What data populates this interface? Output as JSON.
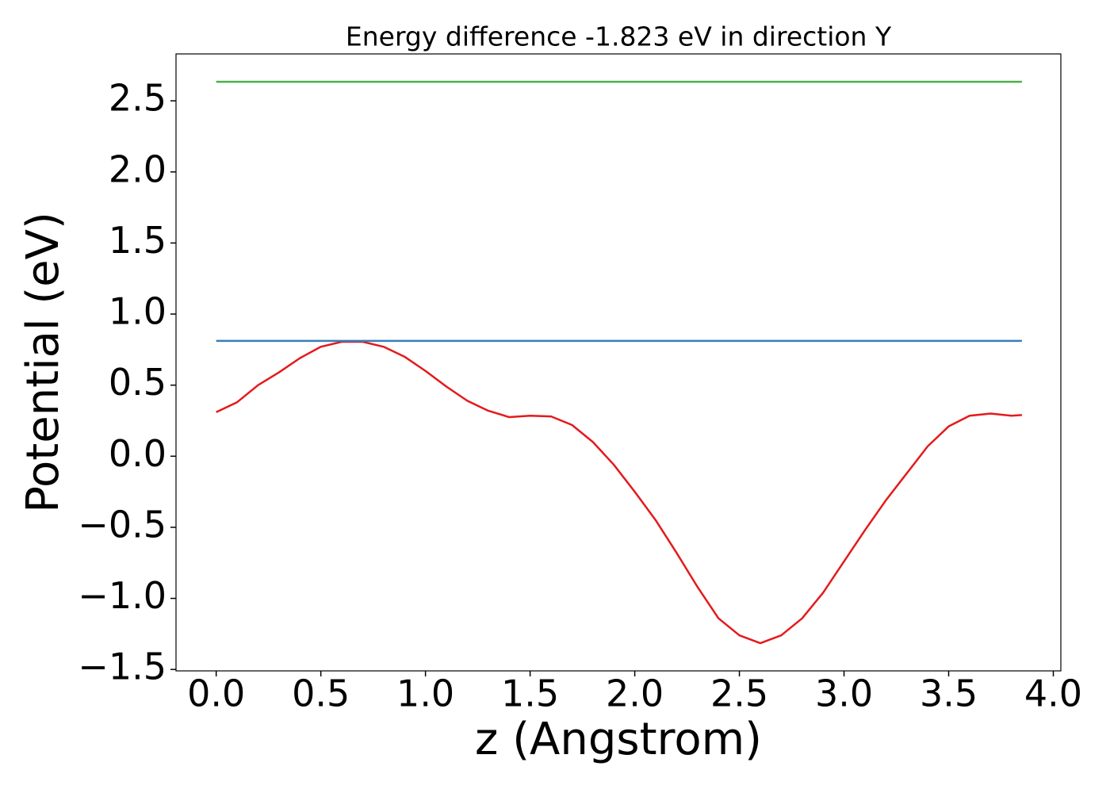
{
  "chart_data": {
    "type": "line",
    "title": "Energy difference -1.823 eV in direction Y",
    "x_label": "z (Angstrom)",
    "y_label": "Potential (eV)",
    "xlim": [
      -0.192,
      4.036
    ],
    "ylim": [
      -1.51,
      2.83
    ],
    "xticks": [
      {
        "value": 0,
        "label": "0.0"
      },
      {
        "value": 0.5,
        "label": "0.5"
      },
      {
        "value": 1,
        "label": "1.0"
      },
      {
        "value": 1.5,
        "label": "1.5"
      },
      {
        "value": 2,
        "label": "2.0"
      },
      {
        "value": 2.5,
        "label": "2.5"
      },
      {
        "value": 3,
        "label": "3.0"
      },
      {
        "value": 3.5,
        "label": "3.5"
      },
      {
        "value": 4,
        "label": "4.0"
      }
    ],
    "yticks": [
      {
        "value": -1.5,
        "label": "−1.5"
      },
      {
        "value": -1,
        "label": "−1.0"
      },
      {
        "value": -0.5,
        "label": "−0.5"
      },
      {
        "value": 0,
        "label": "0.0"
      },
      {
        "value": 0.5,
        "label": "0.5"
      },
      {
        "value": 1,
        "label": "1.0"
      },
      {
        "value": 1.5,
        "label": "1.5"
      },
      {
        "value": 2,
        "label": "2.0"
      },
      {
        "value": 2.5,
        "label": "2.5"
      }
    ],
    "grid": false,
    "series": [
      {
        "color": "#e41a1c",
        "x": [
          0,
          0.1,
          0.2,
          0.3,
          0.4,
          0.5,
          0.6,
          0.7,
          0.8,
          0.9,
          1.0,
          1.1,
          1.2,
          1.3,
          1.4,
          1.5,
          1.6,
          1.7,
          1.8,
          1.9,
          2.0,
          2.1,
          2.2,
          2.3,
          2.4,
          2.5,
          2.6,
          2.7,
          2.8,
          2.9,
          3.0,
          3.1,
          3.2,
          3.3,
          3.4,
          3.5,
          3.6,
          3.7,
          3.8,
          3.85
        ],
        "values": [
          0.31,
          0.38,
          0.5,
          0.59,
          0.69,
          0.77,
          0.805,
          0.805,
          0.77,
          0.7,
          0.6,
          0.49,
          0.39,
          0.32,
          0.275,
          0.285,
          0.28,
          0.22,
          0.1,
          -0.06,
          -0.25,
          -0.45,
          -0.68,
          -0.92,
          -1.14,
          -1.26,
          -1.315,
          -1.26,
          -1.14,
          -0.96,
          -0.74,
          -0.52,
          -0.31,
          -0.12,
          0.07,
          0.21,
          0.285,
          0.3,
          0.285,
          0.29
        ]
      },
      {
        "color": "#377eb8",
        "x": [
          0,
          3.85
        ],
        "values": [
          0.811,
          0.811
        ]
      },
      {
        "color": "#4daf4a",
        "x": [
          0,
          3.85
        ],
        "values": [
          2.634,
          2.634
        ]
      }
    ]
  }
}
